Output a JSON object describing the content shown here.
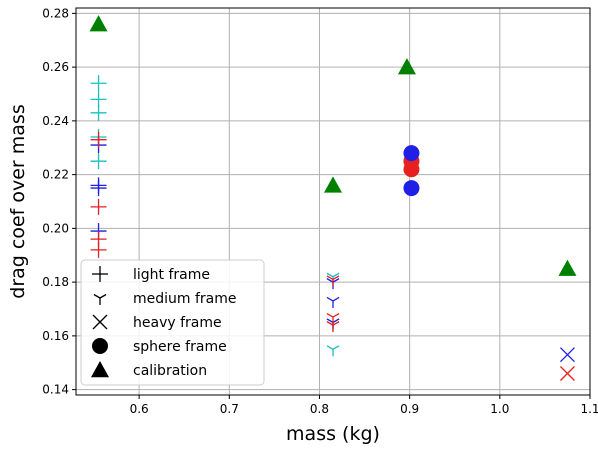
{
  "chart_data": {
    "type": "scatter",
    "title": "",
    "xlabel": "mass (kg)",
    "ylabel": "drag coef over mass",
    "xlim": [
      0.53,
      1.1
    ],
    "ylim": [
      0.138,
      0.282
    ],
    "grid": true,
    "legend_position": "lower-left",
    "x_ticks": [
      0.6,
      0.7,
      0.8,
      0.9,
      1.0,
      1.1
    ],
    "x_tick_labels": [
      "0.6",
      "0.7",
      "0.8",
      "0.9",
      "1.0",
      "1.1"
    ],
    "y_ticks": [
      0.14,
      0.16,
      0.18,
      0.2,
      0.22,
      0.24,
      0.26,
      0.28
    ],
    "y_tick_labels": [
      "0.14",
      "0.16",
      "0.18",
      "0.20",
      "0.22",
      "0.24",
      "0.26",
      "0.28"
    ],
    "colors": {
      "blue": "#1f1fe6",
      "red": "#e61f1f",
      "cyan": "#17bfbf",
      "green": "#008000",
      "black": "#000000"
    },
    "legend": [
      {
        "label": "light frame",
        "marker": "plus"
      },
      {
        "label": "medium frame",
        "marker": "tri_down"
      },
      {
        "label": "heavy frame",
        "marker": "x"
      },
      {
        "label": "sphere frame",
        "marker": "circle"
      },
      {
        "label": "calibration",
        "marker": "triangle"
      }
    ],
    "series": [
      {
        "marker": "plus",
        "color": "cyan",
        "points": [
          {
            "x": 0.555,
            "y": 0.254
          },
          {
            "x": 0.555,
            "y": 0.248
          },
          {
            "x": 0.555,
            "y": 0.243
          },
          {
            "x": 0.555,
            "y": 0.234
          },
          {
            "x": 0.555,
            "y": 0.225
          }
        ]
      },
      {
        "marker": "plus",
        "color": "blue",
        "points": [
          {
            "x": 0.555,
            "y": 0.231
          },
          {
            "x": 0.555,
            "y": 0.216
          },
          {
            "x": 0.555,
            "y": 0.215
          },
          {
            "x": 0.555,
            "y": 0.199
          }
        ]
      },
      {
        "marker": "plus",
        "color": "red",
        "points": [
          {
            "x": 0.555,
            "y": 0.233
          },
          {
            "x": 0.555,
            "y": 0.208
          },
          {
            "x": 0.555,
            "y": 0.196
          },
          {
            "x": 0.555,
            "y": 0.192
          }
        ]
      },
      {
        "marker": "tri_down",
        "color": "cyan",
        "points": [
          {
            "x": 0.815,
            "y": 0.182
          },
          {
            "x": 0.815,
            "y": 0.165
          },
          {
            "x": 0.815,
            "y": 0.155
          }
        ]
      },
      {
        "marker": "tri_down",
        "color": "blue",
        "points": [
          {
            "x": 0.815,
            "y": 0.18
          },
          {
            "x": 0.815,
            "y": 0.173
          },
          {
            "x": 0.815,
            "y": 0.165
          }
        ]
      },
      {
        "marker": "tri_down",
        "color": "red",
        "points": [
          {
            "x": 0.815,
            "y": 0.181
          },
          {
            "x": 0.815,
            "y": 0.167
          },
          {
            "x": 0.815,
            "y": 0.164
          }
        ]
      },
      {
        "marker": "x",
        "color": "blue",
        "points": [
          {
            "x": 1.075,
            "y": 0.153
          }
        ]
      },
      {
        "marker": "x",
        "color": "red",
        "points": [
          {
            "x": 1.075,
            "y": 0.146
          }
        ]
      },
      {
        "marker": "circle",
        "color": "red",
        "points": [
          {
            "x": 0.902,
            "y": 0.225
          },
          {
            "x": 0.902,
            "y": 0.222
          }
        ]
      },
      {
        "marker": "circle",
        "color": "blue",
        "points": [
          {
            "x": 0.902,
            "y": 0.228
          },
          {
            "x": 0.902,
            "y": 0.215
          }
        ]
      },
      {
        "marker": "triangle",
        "color": "green",
        "points": [
          {
            "x": 0.555,
            "y": 0.276
          },
          {
            "x": 0.815,
            "y": 0.216
          },
          {
            "x": 0.897,
            "y": 0.26
          },
          {
            "x": 1.075,
            "y": 0.185
          }
        ]
      }
    ]
  }
}
